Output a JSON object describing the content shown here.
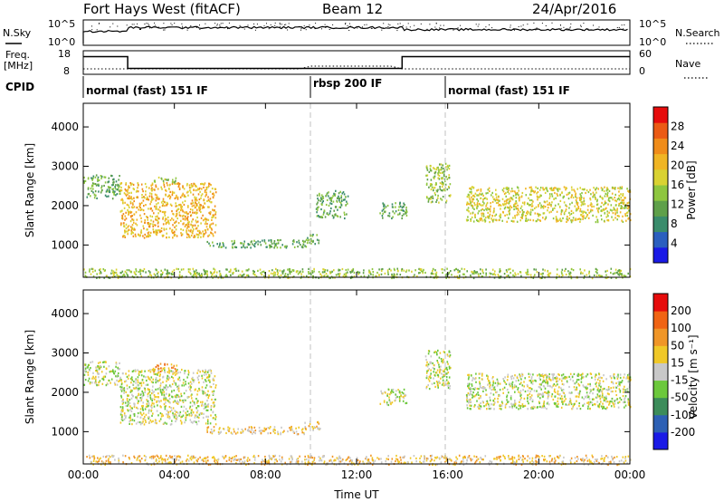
{
  "header": {
    "station": "Fort Hays West (fitACF)",
    "beam": "Beam 12",
    "date": "24/Apr/2016"
  },
  "noise_panel": {
    "left_label": "N.Sky",
    "left_ticks": [
      "10^5",
      "10^0"
    ],
    "right_ticks": [
      "10^5",
      "10^0"
    ],
    "right_label": "N.Search"
  },
  "freq_panel": {
    "left_label_line1": "Freq.",
    "left_label_line2": "[MHz]",
    "left_ticks": [
      "18",
      "8"
    ],
    "right_ticks": [
      "60",
      "0"
    ],
    "right_label": "Nave",
    "freq_steps": [
      {
        "from": 0,
        "to": 1.95,
        "mhz": 15.5
      },
      {
        "from": 1.95,
        "to": 14.0,
        "mhz": 10.5
      },
      {
        "from": 14.0,
        "to": 24.0,
        "mhz": 15.5
      }
    ]
  },
  "cpid": {
    "label": "CPID",
    "segments": [
      {
        "start_hour": 0,
        "text": "normal (fast) 151 IF"
      },
      {
        "start_hour": 10,
        "text": "rbsp 200 IF"
      },
      {
        "start_hour": 16,
        "text": "normal (fast) 151 IF"
      }
    ]
  },
  "chart_data": [
    {
      "type": "heatmap",
      "ylabel": "Slant Range [km]",
      "xlabel": "Time UT",
      "xlim": [
        0,
        24
      ],
      "ylim": [
        180,
        4600
      ],
      "x_ticks": [
        "00:00",
        "04:00",
        "08:00",
        "12:00",
        "16:00",
        "20:00",
        "00:00"
      ],
      "y_ticks": [
        1000,
        2000,
        3000,
        4000
      ],
      "colorbar": {
        "label": "Power [dB]",
        "ticks": [
          "4",
          "8",
          "12",
          "16",
          "20",
          "24",
          "28"
        ],
        "colors": [
          "#1a1ae6",
          "#2b5fbf",
          "#3a8c6c",
          "#5fa04a",
          "#8ec63f",
          "#d9d232",
          "#f0b524",
          "#f08c1a",
          "#eb5a14",
          "#e60c0c"
        ]
      },
      "regions": [
        {
          "t0": 0.0,
          "t1": 1.6,
          "r0": 2200,
          "r1": 2800,
          "level": 3
        },
        {
          "t0": 1.6,
          "t1": 5.8,
          "r0": 1200,
          "r1": 2600,
          "level": 6
        },
        {
          "t0": 3.0,
          "t1": 4.1,
          "r0": 2600,
          "r1": 2750,
          "level": 4
        },
        {
          "t0": 5.4,
          "t1": 9.8,
          "r0": 950,
          "r1": 1150,
          "level": 3
        },
        {
          "t0": 9.7,
          "t1": 10.4,
          "r0": 1050,
          "r1": 1300,
          "level": 3
        },
        {
          "t0": 10.2,
          "t1": 11.6,
          "r0": 1700,
          "r1": 2400,
          "level": 3
        },
        {
          "t0": 13.0,
          "t1": 14.2,
          "r0": 1700,
          "r1": 2100,
          "level": 3
        },
        {
          "t0": 15.0,
          "t1": 16.1,
          "r0": 2100,
          "r1": 3100,
          "level": 4
        },
        {
          "t0": 16.8,
          "t1": 24.0,
          "r0": 1600,
          "r1": 2500,
          "level": 5
        },
        {
          "t0": 0.0,
          "t1": 24.0,
          "r0": 180,
          "r1": 420,
          "level": 4
        }
      ]
    },
    {
      "type": "heatmap",
      "ylabel": "Slant Range [km]",
      "xlabel": "Time UT",
      "xlim": [
        0,
        24
      ],
      "ylim": [
        180,
        4600
      ],
      "x_ticks": [
        "00:00",
        "04:00",
        "08:00",
        "12:00",
        "16:00",
        "20:00",
        "00:00"
      ],
      "y_ticks": [
        1000,
        2000,
        3000,
        4000
      ],
      "colorbar": {
        "label": "Velocity [m s⁻¹]",
        "ticks": [
          "200",
          "100",
          "50",
          "15",
          "-15",
          "-50",
          "-100",
          "-200"
        ],
        "colors": [
          "#1a1ae6",
          "#2d60b4",
          "#3c8c5a",
          "#6cc83c",
          "#c8c8c8",
          "#f0c828",
          "#f09628",
          "#f06414",
          "#e60c0c"
        ]
      },
      "regions": [
        {
          "t0": 0.0,
          "t1": 1.6,
          "r0": 2200,
          "r1": 2800,
          "level": 4
        },
        {
          "t0": 1.6,
          "t1": 5.8,
          "r0": 1200,
          "r1": 2600,
          "level": 4
        },
        {
          "t0": 3.0,
          "t1": 4.1,
          "r0": 2550,
          "r1": 2750,
          "level": 6
        },
        {
          "t0": 5.4,
          "t1": 9.8,
          "r0": 950,
          "r1": 1150,
          "level": 5
        },
        {
          "t0": 9.7,
          "t1": 10.4,
          "r0": 1050,
          "r1": 1300,
          "level": 5
        },
        {
          "t0": 13.0,
          "t1": 14.2,
          "r0": 1700,
          "r1": 2100,
          "level": 4
        },
        {
          "t0": 15.0,
          "t1": 16.1,
          "r0": 2100,
          "r1": 3100,
          "level": 4
        },
        {
          "t0": 16.8,
          "t1": 24.0,
          "r0": 1600,
          "r1": 2500,
          "level": 4
        },
        {
          "t0": 0.0,
          "t1": 24.0,
          "r0": 180,
          "r1": 420,
          "level": 5
        }
      ]
    }
  ]
}
